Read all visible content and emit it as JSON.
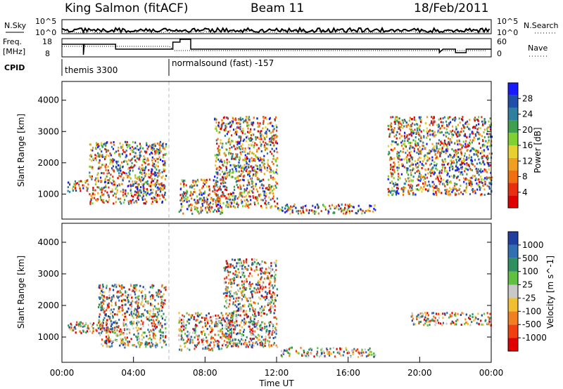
{
  "header": {
    "station": "King Salmon (fitACF)",
    "beam": "Beam 11",
    "date": "18/Feb/2011"
  },
  "top_panels": {
    "nsky_label": "N.Sky",
    "nsky_ticks": [
      "10^5",
      "10^0"
    ],
    "nsearch_label": "N.Search",
    "nsearch_ticks": [
      "10^5",
      "10^0"
    ],
    "freq_label_line1": "Freq.",
    "freq_label_line2": "[MHz]",
    "freq_ticks": [
      "18",
      "8"
    ],
    "nave_label": "Nave",
    "nave_ticks": [
      "60",
      "0"
    ],
    "cpid_label": "CPID",
    "cpid_modes": [
      {
        "name": "themis 3300",
        "start_hour": 0
      },
      {
        "name": "normalsound (fast) -157",
        "start_hour": 6
      }
    ]
  },
  "chart_data": [
    {
      "type": "heatmap",
      "title": "",
      "ylabel": "Slant Range [km]",
      "xlabel": "",
      "xlim": [
        0,
        24
      ],
      "ylim": [
        200,
        4600
      ],
      "yticks": [
        "1000",
        "2000",
        "3000",
        "4000"
      ],
      "colorbar": {
        "label": "Power [dB]",
        "ticks": [
          "4",
          "8",
          "12",
          "16",
          "20",
          "24",
          "28"
        ],
        "colors": [
          "#1a1aff",
          "#1f4fa8",
          "#2f7f9f",
          "#3f9f4f",
          "#7fd030",
          "#e8d030",
          "#f0a020",
          "#f07010",
          "#e83010",
          "#e00000"
        ]
      },
      "regions": [
        {
          "time_start": 0.3,
          "time_end": 1.5,
          "range_start": 1100,
          "range_end": 1500,
          "level": "12-20 dB"
        },
        {
          "time_start": 1.5,
          "time_end": 5.8,
          "range_start": 700,
          "range_end": 2700,
          "level": "8-28 dB"
        },
        {
          "time_start": 6.5,
          "time_end": 9.0,
          "range_start": 400,
          "range_end": 1500,
          "level": "20-28 dB"
        },
        {
          "time_start": 8.5,
          "time_end": 12.0,
          "range_start": 600,
          "range_end": 3500,
          "level": "4-24 dB"
        },
        {
          "time_start": 12.0,
          "time_end": 17.5,
          "range_start": 400,
          "range_end": 700,
          "level": "8-12 dB"
        },
        {
          "time_start": 18.2,
          "time_end": 24.0,
          "range_start": 1000,
          "range_end": 3500,
          "level": "4-12 dB"
        }
      ]
    },
    {
      "type": "heatmap",
      "title": "",
      "ylabel": "Slant Range [km]",
      "xlabel": "Time UT",
      "xlim": [
        0,
        24
      ],
      "ylim": [
        200,
        4600
      ],
      "xticks": [
        "00:00",
        "04:00",
        "08:00",
        "12:00",
        "16:00",
        "20:00",
        "00:00"
      ],
      "yticks": [
        "1000",
        "2000",
        "3000",
        "4000"
      ],
      "colorbar": {
        "label": "Velocity [m s^-1]",
        "ticks": [
          "1000",
          "500",
          "100",
          "25",
          "-25",
          "-100",
          "-500",
          "-1000"
        ],
        "colors": [
          "#2040a0",
          "#3070b0",
          "#2f8f5f",
          "#60c040",
          "#c8c8c8",
          "#f0c030",
          "#f08020",
          "#f04010",
          "#e00000"
        ]
      },
      "regions": [
        {
          "time_start": 0.3,
          "time_end": 3.0,
          "range_start": 1150,
          "range_end": 1500,
          "level": "-25..25 m/s"
        },
        {
          "time_start": 2.0,
          "time_end": 5.8,
          "range_start": 700,
          "range_end": 2700,
          "level": "-500..-100 m/s"
        },
        {
          "time_start": 6.5,
          "time_end": 9.5,
          "range_start": 600,
          "range_end": 1800,
          "level": "-500..-100 m/s"
        },
        {
          "time_start": 9.0,
          "time_end": 12.0,
          "range_start": 700,
          "range_end": 3500,
          "level": "-100..100 m/s"
        },
        {
          "time_start": 12.2,
          "time_end": 17.5,
          "range_start": 400,
          "range_end": 700,
          "level": "25..100 m/s"
        },
        {
          "time_start": 19.5,
          "time_end": 24.0,
          "range_start": 1400,
          "range_end": 1800,
          "level": "-25..25 m/s"
        }
      ]
    }
  ]
}
